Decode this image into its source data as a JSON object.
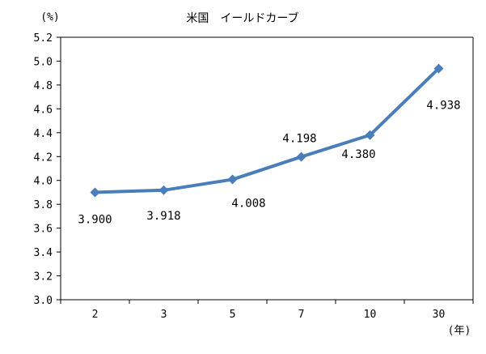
{
  "chart_data": {
    "type": "line",
    "title": "米国　イールドカーブ",
    "ylabel": "(%)",
    "xlabel": "(年)",
    "categories": [
      "2",
      "3",
      "5",
      "7",
      "10",
      "30"
    ],
    "series": [
      {
        "values": [
          3.9,
          3.918,
          4.008,
          4.198,
          4.38,
          4.938
        ]
      }
    ],
    "data_labels": [
      "3.900",
      "3.918",
      "4.008",
      "4.198",
      "4.380",
      "4.938"
    ],
    "ylim": [
      3.0,
      5.2
    ],
    "yticks": [
      "3.0",
      "3.2",
      "3.4",
      "3.6",
      "3.8",
      "4.0",
      "4.2",
      "4.4",
      "4.6",
      "4.8",
      "5.0",
      "5.2"
    ],
    "grid": false,
    "line_color": "#4a7ebb",
    "marker": "diamond"
  }
}
